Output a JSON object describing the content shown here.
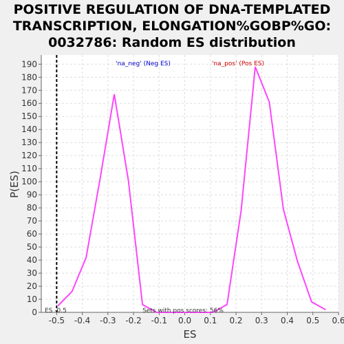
{
  "chart_data": {
    "type": "line",
    "title_lines": [
      "POSITIVE REGULATION OF DNA-TEMPLATED",
      "TRANSCRIPTION, ELONGATION%GOBP%GO:",
      "0032786: Random ES distribution"
    ],
    "xlabel": "ES",
    "ylabel": "P(ES)",
    "xlim": [
      -0.56,
      0.6
    ],
    "ylim": [
      0,
      197
    ],
    "x_ticks": [
      "-0.5",
      "-0.4",
      "-0.3",
      "-0.2",
      "-0.1",
      "0.0",
      "0.1",
      "0.2",
      "0.3",
      "0.4",
      "0.5",
      "0.6"
    ],
    "y_ticks": [
      "0",
      "10",
      "20",
      "30",
      "40",
      "50",
      "60",
      "70",
      "80",
      "90",
      "100",
      "110",
      "120",
      "130",
      "140",
      "150",
      "160",
      "170",
      "180",
      "190"
    ],
    "grid": true,
    "series": [
      {
        "color": "#ff44ff",
        "points": [
          [
            -0.495,
            5
          ],
          [
            -0.44,
            16
          ],
          [
            -0.385,
            42
          ],
          [
            -0.33,
            103
          ],
          [
            -0.275,
            167
          ],
          [
            -0.22,
            101
          ],
          [
            -0.165,
            6
          ],
          [
            -0.11,
            0
          ],
          [
            -0.055,
            0
          ],
          [
            0.0,
            0
          ],
          [
            0.055,
            0
          ],
          [
            0.11,
            0
          ],
          [
            0.165,
            6
          ],
          [
            0.22,
            78
          ],
          [
            0.275,
            188
          ],
          [
            0.33,
            161
          ],
          [
            0.385,
            79
          ],
          [
            0.44,
            39
          ],
          [
            0.495,
            8
          ],
          [
            0.55,
            2
          ]
        ]
      }
    ],
    "observed_es": -0.5,
    "annotations": {
      "neg_label": "'na_neg' (Neg ES)",
      "neg_color": "#0000cc",
      "pos_label": "'na_pos' (Pos ES)",
      "pos_color": "#cc0000",
      "es_marker_label": "ES -0.5",
      "sets_label": "Sets with pos scores: 56%"
    }
  }
}
